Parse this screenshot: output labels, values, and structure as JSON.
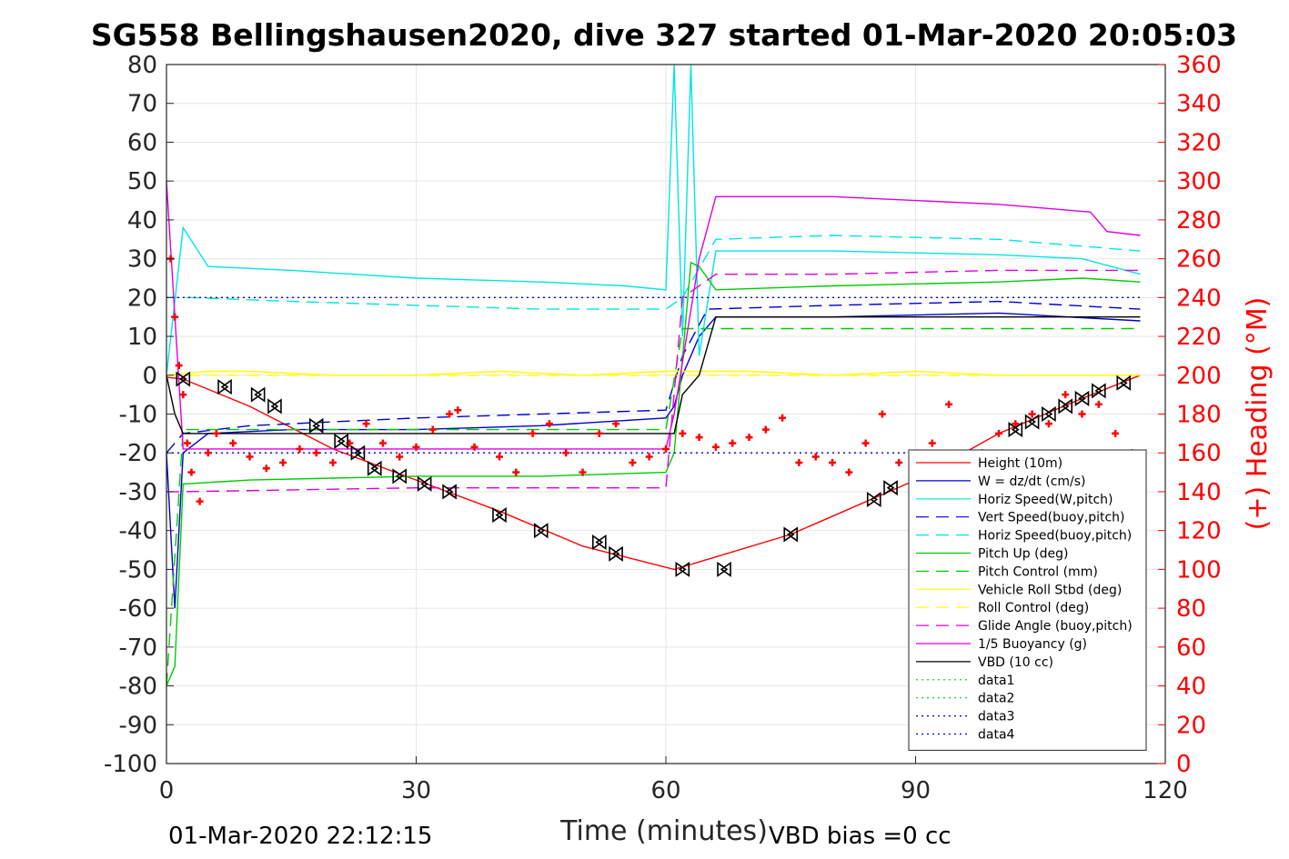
{
  "chart_data": {
    "type": "line",
    "title": "SG558 Bellingshausen2020, dive 327 started 01-Mar-2020 20:05:03",
    "xlabel": "Time (minutes)",
    "ylabel": "",
    "ylabel_right": "(+) Heading (°M)",
    "xlim": [
      0,
      120
    ],
    "ylim": [
      -100,
      80
    ],
    "ylim_right": [
      0,
      360
    ],
    "x_ticks": [
      "0",
      "30",
      "60",
      "90",
      "120"
    ],
    "y_ticks": [
      "80",
      "70",
      "60",
      "50",
      "40",
      "30",
      "20",
      "10",
      "0",
      "-10",
      "-20",
      "-30",
      "-40",
      "-50",
      "-60",
      "-70",
      "-80",
      "-90",
      "-100"
    ],
    "y_right_ticks": [
      "360",
      "340",
      "320",
      "300",
      "280",
      "260",
      "240",
      "220",
      "200",
      "180",
      "160",
      "140",
      "120",
      "100",
      "80",
      "60",
      "40",
      "20",
      "0"
    ],
    "grid": true,
    "legend_position": "bottom-right",
    "footer_left": "01-Mar-2020 22:12:15",
    "footer_right": "VBD bias =0 cc",
    "series": [
      {
        "name": "Height (10m)",
        "color": "#ff0000",
        "style": "solid",
        "x": [
          0,
          2,
          10,
          20,
          30,
          40,
          50,
          61,
          75,
          90,
          100,
          110,
          117
        ],
        "y": [
          -0.5,
          -1,
          -8,
          -19,
          -27,
          -35,
          -44,
          -50,
          -41,
          -27,
          -15,
          -6,
          0
        ]
      },
      {
        "name": "W = dz/dt (cm/s)",
        "color": "#0000cd",
        "style": "solid",
        "x": [
          0,
          1,
          2,
          5,
          15,
          30,
          45,
          60,
          61,
          62,
          64,
          66,
          80,
          100,
          117
        ],
        "y": [
          -20,
          -60,
          -20,
          -15,
          -14,
          -14,
          -13,
          -11,
          -8,
          0,
          10,
          15,
          15,
          16,
          14
        ]
      },
      {
        "name": "Horiz Speed(W,pitch)",
        "color": "#00e5e5",
        "style": "solid",
        "x": [
          0,
          2,
          5,
          15,
          30,
          45,
          55,
          60,
          61,
          62,
          63,
          64,
          66,
          80,
          100,
          110,
          117
        ],
        "y": [
          0,
          38,
          28,
          27,
          25,
          24,
          23,
          22,
          80,
          10,
          80,
          5,
          32,
          32,
          31,
          30,
          26
        ]
      },
      {
        "name": "Vert Speed(buoy,pitch)",
        "color": "#0000cd",
        "style": "dashed",
        "x": [
          0,
          2,
          10,
          30,
          45,
          60,
          62,
          65,
          80,
          100,
          117
        ],
        "y": [
          -20,
          -15,
          -13,
          -11,
          -10,
          -9,
          5,
          17,
          18,
          19,
          17
        ]
      },
      {
        "name": "Horiz Speed(buoy,pitch)",
        "color": "#00e5e5",
        "style": "dashed",
        "x": [
          0,
          3,
          15,
          30,
          45,
          60,
          62,
          66,
          80,
          100,
          117
        ],
        "y": [
          20,
          20,
          19,
          18,
          17,
          17,
          20,
          35,
          36,
          35,
          32
        ]
      },
      {
        "name": "Pitch Up (deg)",
        "color": "#00cc00",
        "style": "solid",
        "x": [
          0,
          1,
          2,
          10,
          30,
          45,
          60,
          61,
          63,
          64,
          66,
          80,
          100,
          110,
          117
        ],
        "y": [
          -80,
          -75,
          -28,
          -27,
          -26,
          -26,
          -25,
          -20,
          29,
          28,
          22,
          23,
          24,
          25,
          24
        ]
      },
      {
        "name": "Pitch Control (mm)",
        "color": "#00cc00",
        "style": "dashed",
        "x": [
          0,
          2,
          60,
          62,
          66,
          117
        ],
        "y": [
          -80,
          -14,
          -14,
          12,
          12,
          12
        ]
      },
      {
        "name": "Vehicle Roll Stbd (deg)",
        "color": "#ffff00",
        "style": "solid",
        "x": [
          0,
          5,
          10,
          20,
          30,
          40,
          50,
          60,
          70,
          80,
          90,
          100,
          110,
          117
        ],
        "y": [
          0,
          1,
          1,
          0,
          0,
          1,
          0,
          1,
          1,
          0,
          1,
          0,
          0,
          0
        ]
      },
      {
        "name": "Roll Control (deg)",
        "color": "#ffff00",
        "style": "dashed",
        "x": [
          0,
          5,
          10,
          20,
          30,
          40,
          50,
          60,
          70,
          80,
          90,
          100,
          110,
          117
        ],
        "y": [
          0,
          0,
          0,
          0,
          0,
          0,
          0,
          0,
          0,
          0,
          0,
          0,
          0,
          0
        ]
      },
      {
        "name": "Glide Angle (buoy,pitch)",
        "color": "#dd00dd",
        "style": "dashed",
        "x": [
          0,
          2,
          30,
          60,
          62,
          66,
          80,
          100,
          117
        ],
        "y": [
          -30,
          -30,
          -29,
          -29,
          20,
          26,
          26,
          27,
          27
        ]
      },
      {
        "name": "1/5 Buoyancy (g)",
        "color": "#dd00dd",
        "style": "solid",
        "x": [
          0,
          2,
          10,
          30,
          60,
          61,
          64,
          66,
          80,
          100,
          111,
          113,
          117
        ],
        "y": [
          50,
          -19,
          -19,
          -19,
          -19,
          -10,
          30,
          46,
          46,
          44,
          42,
          37,
          36
        ]
      },
      {
        "name": "VBD (10 cc)",
        "color": "#000000",
        "style": "solid",
        "x": [
          0,
          1,
          2,
          60,
          61,
          62,
          64,
          66,
          117
        ],
        "y": [
          0,
          -10,
          -15,
          -15,
          -15,
          -5,
          0,
          15,
          15
        ]
      },
      {
        "name": "data1",
        "color": "#00cc00",
        "style": "dotted",
        "x": [],
        "y": []
      },
      {
        "name": "data2",
        "color": "#00cc00",
        "style": "dotted",
        "x": [],
        "y": []
      },
      {
        "name": "data3",
        "color": "#0000cd",
        "style": "dotted",
        "x": [
          0,
          117
        ],
        "y": [
          20,
          20
        ]
      },
      {
        "name": "data4",
        "color": "#0000cd",
        "style": "dotted",
        "x": [
          0,
          117
        ],
        "y": [
          -20,
          -20
        ]
      }
    ],
    "heading": {
      "axis": "right",
      "color": "#ff0000",
      "marker": "+",
      "x": [
        0.5,
        1,
        1.5,
        2,
        2.5,
        3,
        4,
        5,
        6,
        8,
        10,
        12,
        14,
        16,
        18,
        20,
        22,
        24,
        26,
        28,
        30,
        32,
        34,
        35,
        37,
        40,
        42,
        44,
        46,
        48,
        50,
        52,
        54,
        56,
        58,
        60,
        62,
        64,
        66,
        68,
        70,
        72,
        74,
        76,
        78,
        80,
        82,
        84,
        86,
        88,
        90,
        92,
        94,
        96,
        98,
        100,
        102,
        104,
        106,
        108,
        110,
        112,
        114,
        116
      ],
      "y": [
        260,
        230,
        205,
        190,
        165,
        150,
        135,
        160,
        170,
        165,
        158,
        152,
        155,
        162,
        160,
        155,
        165,
        175,
        165,
        158,
        163,
        172,
        180,
        182,
        163,
        158,
        150,
        170,
        175,
        160,
        150,
        170,
        175,
        155,
        158,
        162,
        170,
        168,
        163,
        165,
        168,
        172,
        178,
        155,
        158,
        155,
        150,
        165,
        180,
        155,
        150,
        165,
        185,
        155,
        160,
        170,
        175,
        180,
        175,
        190,
        180,
        185,
        170,
        160
      ]
    },
    "markers": {
      "color": "#000000",
      "shape": "triangle-pair",
      "x": [
        2,
        7,
        11,
        13,
        18,
        21,
        23,
        25,
        28,
        31,
        34,
        40,
        45,
        52,
        54,
        62,
        67,
        75,
        85,
        87,
        102,
        104,
        106,
        108,
        110,
        112,
        115
      ],
      "y": [
        -1,
        -3,
        -5,
        -8,
        -13,
        -17,
        -20,
        -24,
        -26,
        -28,
        -30,
        -36,
        -40,
        -43,
        -46,
        -50,
        -50,
        -41,
        -32,
        -29,
        -14,
        -12,
        -10,
        -8,
        -6,
        -4,
        -2
      ]
    }
  }
}
